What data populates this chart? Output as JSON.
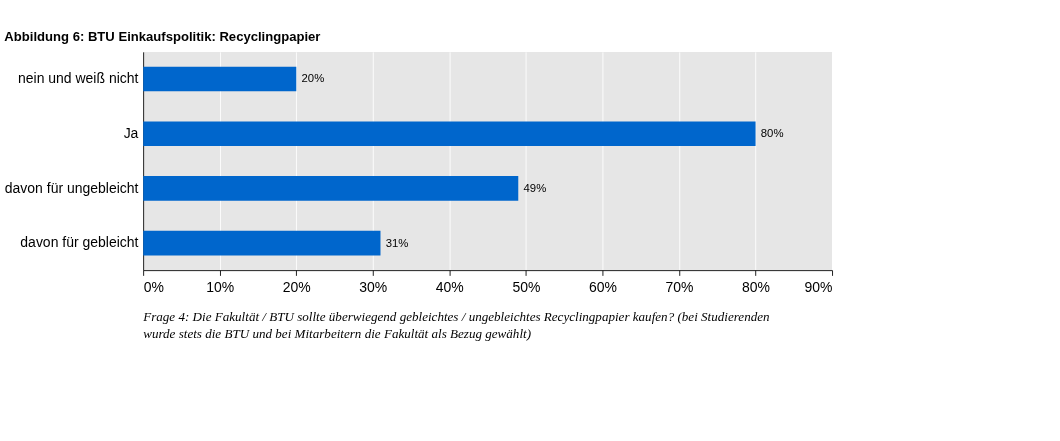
{
  "chart_data": {
    "type": "bar",
    "orientation": "horizontal",
    "title": "Abbildung 6: BTU Einkaufspolitik: Recyclingpapier",
    "categories": [
      "nein und weiß nicht",
      "Ja",
      "davon für ungebleicht",
      "davon für gebleicht"
    ],
    "values": [
      20,
      80,
      49,
      31
    ],
    "color": "#0066cc",
    "value_labels": [
      "20%",
      "80%",
      "49%",
      "31%"
    ],
    "xlim": [
      0,
      90
    ],
    "xticks": [
      {
        "value": 0,
        "label": "0%"
      },
      {
        "value": 10,
        "label": "10%"
      },
      {
        "value": 20,
        "label": "20%"
      },
      {
        "value": 30,
        "label": "30%"
      },
      {
        "value": 40,
        "label": "40%"
      },
      {
        "value": 50,
        "label": "50%"
      },
      {
        "value": 60,
        "label": "60%"
      },
      {
        "value": 70,
        "label": "70%"
      },
      {
        "value": 80,
        "label": "80%"
      },
      {
        "value": 90,
        "label": "90%"
      }
    ],
    "grid": "x",
    "annotations": [
      "Frage 4: Die Fakultät / BTU sollte überwiegend gebleichtes / ungebleichtes Recyclingpapier kaufen? (bei Studierenden wurde stets die BTU und bei Mitarbeitern die Fakultät als Bezug gewählt)"
    ]
  }
}
